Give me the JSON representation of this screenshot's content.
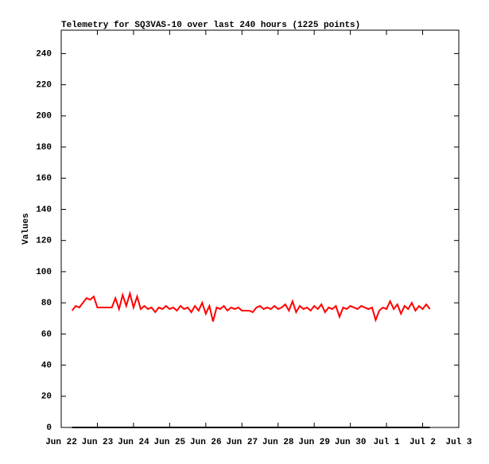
{
  "chart_data": {
    "type": "line",
    "title": "Telemetry for SQ3VAS-10 over last 240 hours (1225 points)",
    "y_label": "Values",
    "x": [
      0.3,
      0.4,
      0.5,
      0.6,
      0.7,
      0.8,
      0.9,
      1.0,
      1.1,
      1.2,
      1.3,
      1.4,
      1.5,
      1.6,
      1.7,
      1.8,
      1.9,
      2.0,
      2.1,
      2.2,
      2.3,
      2.4,
      2.5,
      2.6,
      2.7,
      2.8,
      2.9,
      3.0,
      3.1,
      3.2,
      3.3,
      3.4,
      3.5,
      3.6,
      3.7,
      3.8,
      3.9,
      4.0,
      4.1,
      4.2,
      4.3,
      4.4,
      4.5,
      4.6,
      4.7,
      4.8,
      4.9,
      5.0,
      5.1,
      5.2,
      5.3,
      5.4,
      5.5,
      5.6,
      5.7,
      5.8,
      5.9,
      6.0,
      6.1,
      6.2,
      6.3,
      6.4,
      6.5,
      6.6,
      6.7,
      6.8,
      6.9,
      7.0,
      7.1,
      7.2,
      7.3,
      7.4,
      7.5,
      7.6,
      7.7,
      7.8,
      7.9,
      8.0,
      8.1,
      8.2,
      8.3,
      8.4,
      8.5,
      8.6,
      8.7,
      8.8,
      8.9,
      9.0,
      9.1,
      9.2,
      9.3,
      9.4,
      9.5,
      9.6,
      9.7,
      9.8,
      9.9,
      10.0,
      10.1,
      10.2
    ],
    "series": [
      {
        "color": "#ff0000",
        "values": [
          75,
          78,
          77,
          80,
          83,
          82,
          84,
          77,
          77,
          77,
          77,
          77,
          83,
          76,
          85,
          78,
          86,
          77,
          84,
          76,
          78,
          76,
          77,
          74,
          77,
          76,
          78,
          76,
          77,
          75,
          78,
          76,
          77,
          74,
          78,
          75,
          80,
          73,
          78,
          68,
          77,
          76,
          78,
          75,
          77,
          76,
          77,
          75,
          75,
          75,
          74,
          77,
          78,
          76,
          77,
          76,
          78,
          76,
          77,
          79,
          75,
          81,
          74,
          78,
          76,
          77,
          75,
          78,
          76,
          79,
          74,
          77,
          76,
          78,
          71,
          77,
          76,
          78,
          77,
          76,
          78,
          77,
          76,
          77,
          69,
          75,
          77,
          76,
          81,
          76,
          79,
          73,
          78,
          76,
          80,
          75,
          78,
          76,
          79,
          76
        ]
      },
      {
        "color": "#000000",
        "values": [
          0,
          0,
          0,
          0,
          0,
          0,
          0,
          0,
          0,
          0,
          0,
          0,
          0,
          0,
          0,
          0,
          0,
          0,
          0,
          0,
          0,
          0,
          0,
          0,
          0,
          0,
          0,
          0,
          0,
          0,
          0,
          0,
          0,
          0,
          0,
          0,
          0,
          0,
          0,
          0,
          0,
          0,
          0,
          0,
          0,
          0,
          0,
          0,
          0,
          0,
          0,
          0,
          0,
          0,
          0,
          0,
          0,
          0,
          0,
          0,
          0,
          0,
          0,
          0,
          0,
          0,
          0,
          0,
          0,
          0,
          0,
          0,
          0,
          0,
          0,
          0,
          0,
          0,
          0,
          0,
          0,
          0,
          0,
          0,
          0,
          0,
          0,
          0,
          0,
          0,
          0,
          0,
          0,
          0,
          0,
          0,
          0,
          0,
          0,
          0
        ]
      }
    ],
    "xlim": [
      0,
      11
    ],
    "xticks": [
      {
        "value": 0,
        "label": "Jun 22"
      },
      {
        "value": 1,
        "label": "Jun 23"
      },
      {
        "value": 2,
        "label": "Jun 24"
      },
      {
        "value": 3,
        "label": "Jun 25"
      },
      {
        "value": 4,
        "label": "Jun 26"
      },
      {
        "value": 5,
        "label": "Jun 27"
      },
      {
        "value": 6,
        "label": "Jun 28"
      },
      {
        "value": 7,
        "label": "Jun 29"
      },
      {
        "value": 8,
        "label": "Jun 30"
      },
      {
        "value": 9,
        "label": "Jul 1"
      },
      {
        "value": 10,
        "label": "Jul 2"
      },
      {
        "value": 11,
        "label": "Jul 3"
      }
    ],
    "ylim": [
      0,
      255
    ],
    "yticks": [
      0,
      20,
      40,
      60,
      80,
      100,
      120,
      140,
      160,
      180,
      200,
      220,
      240
    ]
  }
}
